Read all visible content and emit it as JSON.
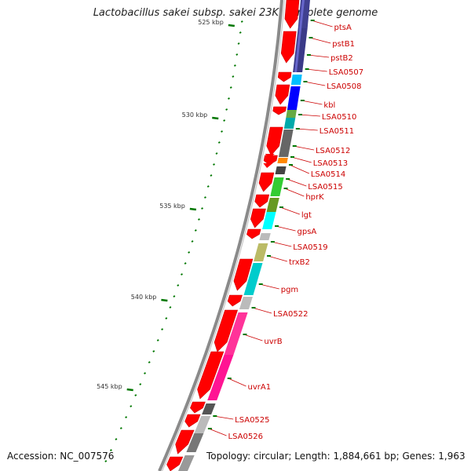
{
  "title": "Lactobacillus sakei subsp. sakei 23K, complete genome",
  "accession": "Accession: NC_007576",
  "topology": "Topology: circular; Length: 1,884,661 bp; Genes: 1,963",
  "colors": {
    "forward_arrow": "#ff0000",
    "tick": "#007700",
    "label": "#cc0000",
    "backbone": "#888888"
  },
  "scale_labels": [
    {
      "kbp": 525,
      "text": "525 kbp"
    },
    {
      "kbp": 530,
      "text": "530 kbp"
    },
    {
      "kbp": 535,
      "text": "535 kbp"
    },
    {
      "kbp": 540,
      "text": "540 kbp"
    },
    {
      "kbp": 545,
      "text": "545 kbp"
    }
  ],
  "genes": [
    {
      "name": "ptsA"
    },
    {
      "name": "pstB1"
    },
    {
      "name": "pstB2"
    },
    {
      "name": "LSA0507"
    },
    {
      "name": "LSA0508"
    },
    {
      "name": "kbl"
    },
    {
      "name": "LSA0510"
    },
    {
      "name": "LSA0511"
    },
    {
      "name": "LSA0512"
    },
    {
      "name": "LSA0513"
    },
    {
      "name": "LSA0514"
    },
    {
      "name": "LSA0515"
    },
    {
      "name": "hprK"
    },
    {
      "name": "lgt"
    },
    {
      "name": "gpsA"
    },
    {
      "name": "LSA0519"
    },
    {
      "name": "trxB2"
    },
    {
      "name": "pgm"
    },
    {
      "name": "LSA0522"
    },
    {
      "name": "uvrB"
    },
    {
      "name": "uvrA1"
    },
    {
      "name": "LSA0525"
    },
    {
      "name": "LSA0526"
    }
  ]
}
